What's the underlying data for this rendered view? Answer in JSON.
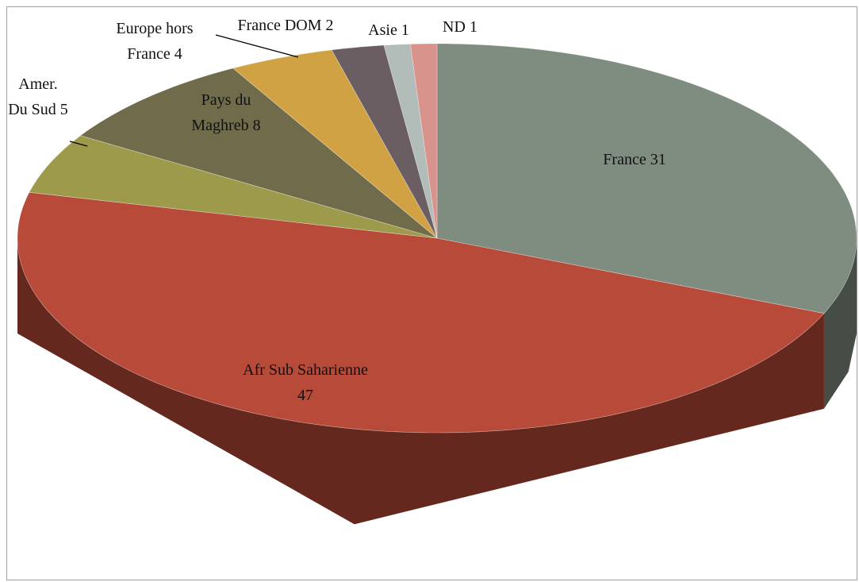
{
  "chart_data": {
    "type": "pie3d",
    "categories": [
      "France",
      "Afr Sub Saharienne",
      "Amer. Du Sud",
      "Pays du Maghreb",
      "Europe hors France",
      "France DOM",
      "Asie",
      "ND"
    ],
    "values": [
      31,
      47,
      5,
      8,
      4,
      2,
      1,
      1
    ],
    "colors": [
      "#7f8c80",
      "#b84a3a",
      "#9e9a4c",
      "#6f6b4b",
      "#d0a244",
      "#6a5e63",
      "#b2bdb9",
      "#d8938c"
    ]
  }
}
